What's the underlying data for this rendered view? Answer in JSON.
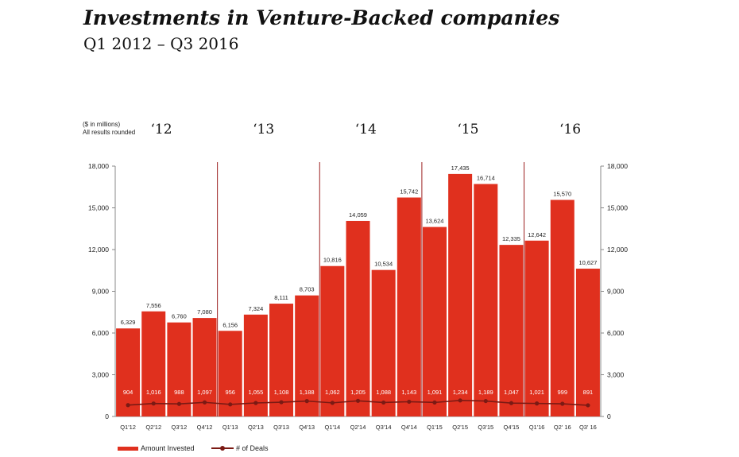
{
  "chart_data": {
    "type": "bar",
    "title": "Investments in Venture-Backed companies",
    "subtitle": "Q1 2012 – Q3 2016",
    "unit_note_line1": "($ in millions)",
    "unit_note_line2": "All results rounded",
    "categories": [
      "Q1'12",
      "Q2'12",
      "Q3'12",
      "Q4'12",
      "Q1'13",
      "Q2'13",
      "Q3'13",
      "Q4'13",
      "Q1'14",
      "Q2'14",
      "Q3'14",
      "Q4'14",
      "Q1'15",
      "Q2'15",
      "Q3'15",
      "Q4'15",
      "Q1'16",
      "Q2' 16",
      "Q3' 16"
    ],
    "series": [
      {
        "name": "Amount Invested",
        "type": "bar",
        "values": [
          6329,
          7556,
          6760,
          7080,
          6156,
          7324,
          8111,
          8703,
          10816,
          14059,
          10534,
          15742,
          13624,
          17435,
          16714,
          12335,
          12642,
          15570,
          10627
        ],
        "labels": [
          "6,329",
          "7,556",
          "6,760",
          "7,080",
          "6,156",
          "7,324",
          "8,111",
          "8,703",
          "10,816",
          "14,059",
          "10,534",
          "15,742",
          "13,624",
          "17,435",
          "16,714",
          "12,335",
          "12,642",
          "15,570",
          "10,627"
        ]
      },
      {
        "name": "# of Deals",
        "type": "line",
        "values": [
          904,
          1016,
          988,
          1097,
          956,
          1055,
          1108,
          1188,
          1062,
          1205,
          1088,
          1143,
          1091,
          1234,
          1189,
          1047,
          1021,
          999,
          891
        ],
        "labels": [
          "904",
          "1,016",
          "988",
          "1,097",
          "956",
          "1,055",
          "1,108",
          "1,188",
          "1,062",
          "1,205",
          "1,088",
          "1,143",
          "1,091",
          "1,234",
          "1,189",
          "1,047",
          "1,021",
          "999",
          "891"
        ]
      }
    ],
    "ylim": [
      0,
      18000
    ],
    "yticks": [
      0,
      3000,
      6000,
      9000,
      12000,
      15000,
      18000
    ],
    "ytick_labels": [
      "0",
      "3,000",
      "6,000",
      "9,000",
      "12,000",
      "15,000",
      "18,000"
    ],
    "year_labels": [
      "‘12",
      "‘13",
      "‘14",
      "‘15",
      "‘16"
    ],
    "year_start_index": [
      0,
      4,
      8,
      12,
      16
    ],
    "colors": {
      "bar": "#e0301e",
      "line": "#7b1a14",
      "separator": "#9b2020",
      "axis": "#888888"
    },
    "legend_placement": "bottom"
  }
}
